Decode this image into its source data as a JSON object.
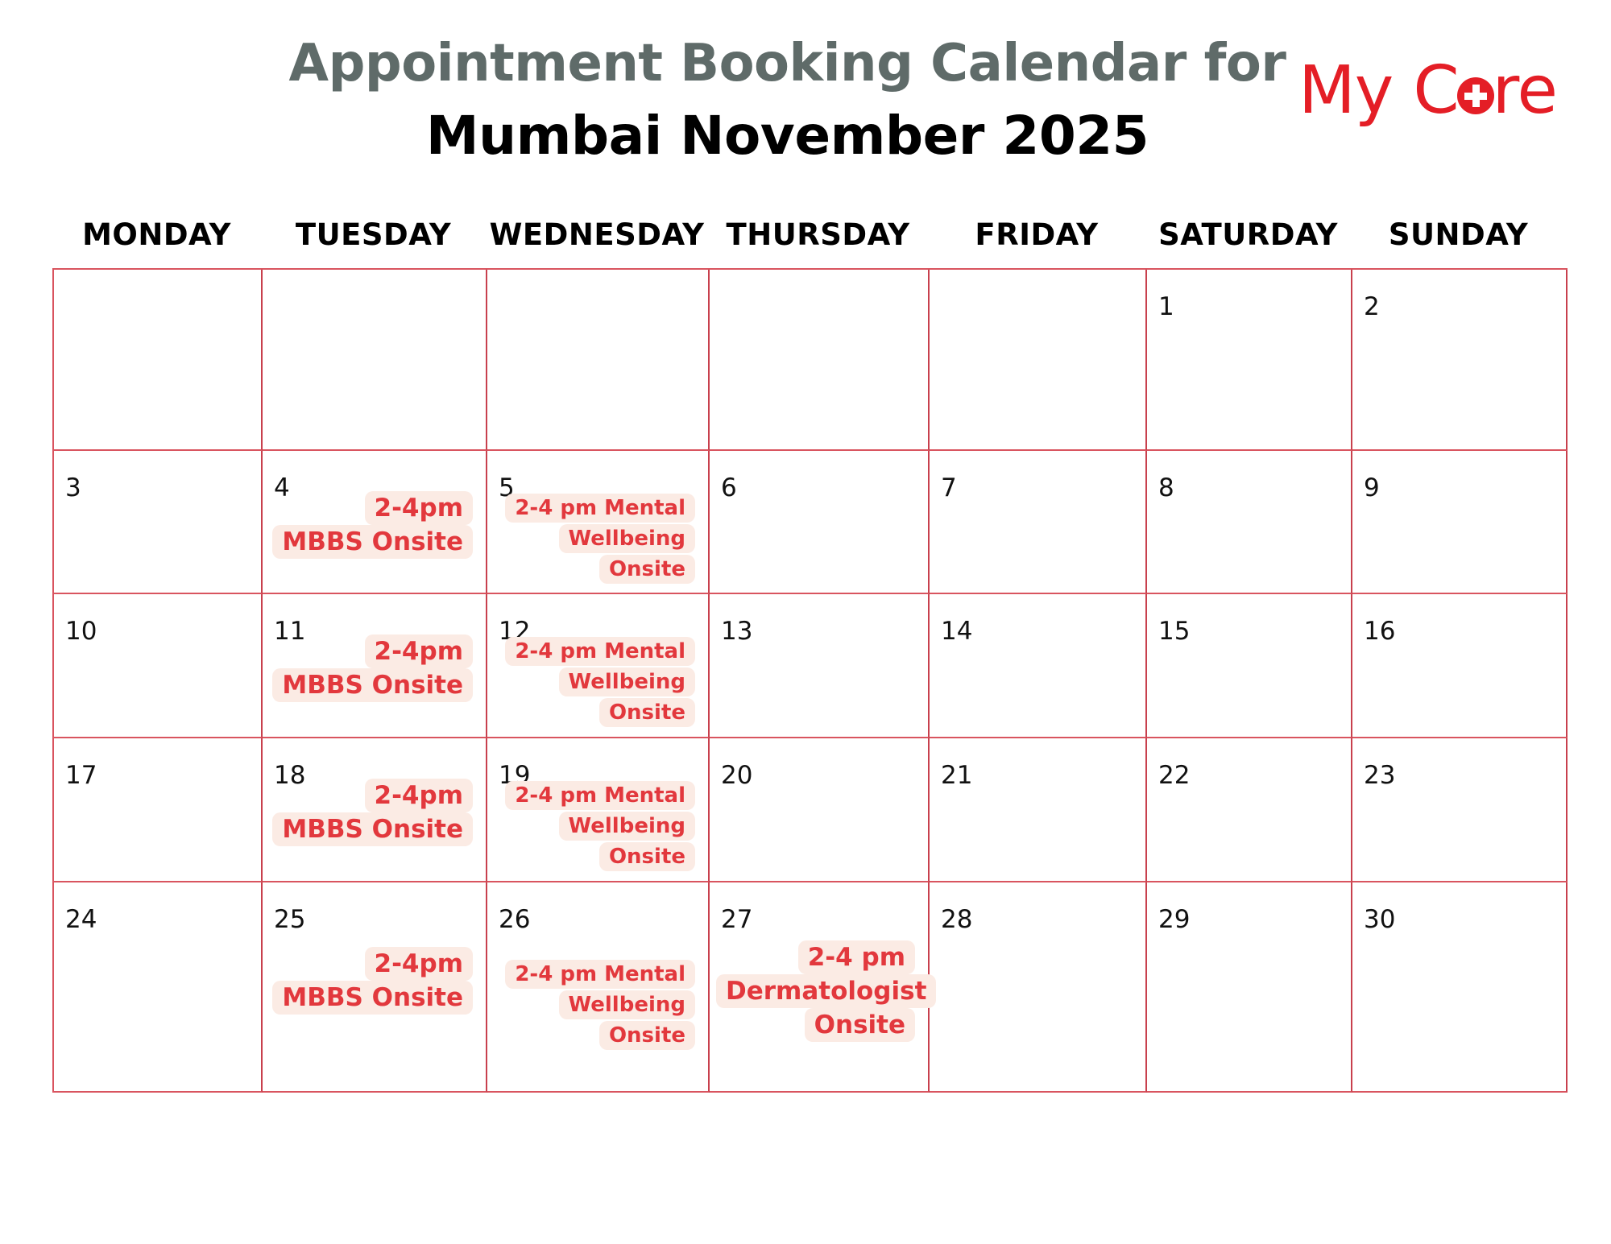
{
  "header": {
    "title_line1": "Appointment Booking Calendar for",
    "title_line2": "Mumbai November 2025",
    "logo_text": "My Care"
  },
  "colors": {
    "accent": "#e2383d",
    "grid": "#d9545f",
    "event_bg": "#fbebe4",
    "title_gray": "#5f6b69"
  },
  "weekdays": [
    "MONDAY",
    "TUESDAY",
    "WEDNESDAY",
    "THURSDAY",
    "FRIDAY",
    "SATURDAY",
    "SUNDAY"
  ],
  "weeks": [
    [
      {
        "day": ""
      },
      {
        "day": ""
      },
      {
        "day": ""
      },
      {
        "day": ""
      },
      {
        "day": ""
      },
      {
        "day": "1"
      },
      {
        "day": "2"
      }
    ],
    [
      {
        "day": "3"
      },
      {
        "day": "4",
        "event": "2-4pm MBBS Onsite",
        "event_lines": [
          "2-4pm",
          "MBBS Onsite"
        ]
      },
      {
        "day": "5",
        "event": "2-4 pm Mental Wellbeing Onsite",
        "event_lines": [
          "2-4 pm Mental",
          "Wellbeing",
          "Onsite"
        ]
      },
      {
        "day": "6"
      },
      {
        "day": "7"
      },
      {
        "day": "8"
      },
      {
        "day": "9"
      }
    ],
    [
      {
        "day": "10"
      },
      {
        "day": "11",
        "event": "2-4pm MBBS Onsite",
        "event_lines": [
          "2-4pm",
          "MBBS Onsite"
        ]
      },
      {
        "day": "12",
        "event": "2-4 pm Mental Wellbeing Onsite",
        "event_lines": [
          "2-4 pm Mental",
          "Wellbeing",
          "Onsite"
        ]
      },
      {
        "day": "13"
      },
      {
        "day": "14"
      },
      {
        "day": "15"
      },
      {
        "day": "16"
      }
    ],
    [
      {
        "day": "17"
      },
      {
        "day": "18",
        "event": "2-4pm MBBS Onsite",
        "event_lines": [
          "2-4pm",
          "MBBS Onsite"
        ]
      },
      {
        "day": "19",
        "event": "2-4 pm Mental Wellbeing Onsite",
        "event_lines": [
          "2-4 pm Mental",
          "Wellbeing",
          "Onsite"
        ]
      },
      {
        "day": "20"
      },
      {
        "day": "21"
      },
      {
        "day": "22"
      },
      {
        "day": "23"
      }
    ],
    [
      {
        "day": "24"
      },
      {
        "day": "25",
        "event": "2-4pm MBBS Onsite",
        "event_lines": [
          "2-4pm",
          "MBBS Onsite"
        ]
      },
      {
        "day": "26",
        "event": "2-4 pm Mental Wellbeing Onsite",
        "event_lines": [
          "2-4 pm Mental",
          "Wellbeing",
          "Onsite"
        ]
      },
      {
        "day": "27",
        "event": "2-4 pm Dermatologist Onsite",
        "event_lines": [
          "2-4 pm",
          "Dermatologist",
          "Onsite"
        ]
      },
      {
        "day": "28"
      },
      {
        "day": "29"
      },
      {
        "day": "30"
      }
    ]
  ]
}
